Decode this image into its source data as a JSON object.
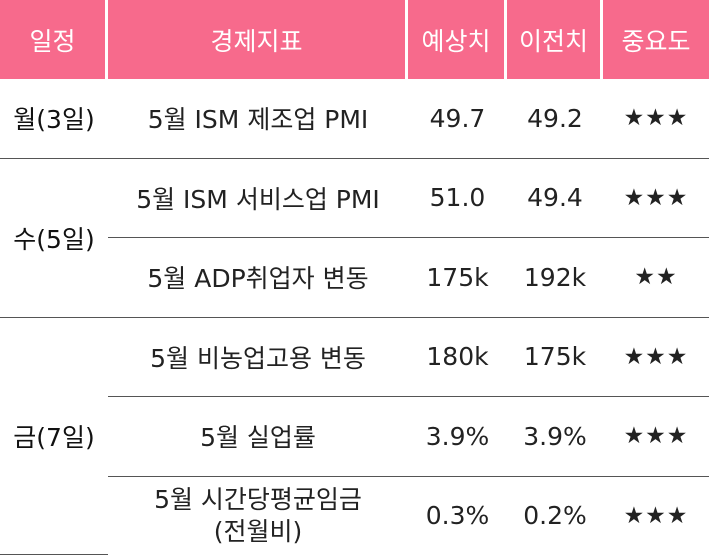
{
  "header": {
    "date": "일정",
    "indicator": "경제지표",
    "forecast": "예상치",
    "previous": "이전치",
    "importance": "중요도"
  },
  "groups": [
    {
      "day": "월(3일)",
      "rows": [
        {
          "indicator": "5월 ISM 제조업 PMI",
          "forecast": "49.7",
          "previous": "49.2",
          "importance": "★★★"
        }
      ]
    },
    {
      "day": "수(5일)",
      "rows": [
        {
          "indicator": "5월 ISM 서비스업 PMI",
          "forecast": "51.0",
          "previous": "49.4",
          "importance": "★★★"
        },
        {
          "indicator": "5월 ADP취업자 변동",
          "forecast": "175k",
          "previous": "192k",
          "importance": "★★"
        }
      ]
    },
    {
      "day": "금(7일)",
      "rows": [
        {
          "indicator": "5월 비농업고용 변동",
          "forecast": "180k",
          "previous": "175k",
          "importance": "★★★"
        },
        {
          "indicator": "5월 실업률",
          "forecast": "3.9%",
          "previous": "3.9%",
          "importance": "★★★"
        },
        {
          "indicator_line1": "5월 시간당평균임금",
          "indicator_line2": "(전월비)",
          "forecast": "0.3%",
          "previous": "0.2%",
          "importance": "★★★"
        }
      ]
    }
  ],
  "colors": {
    "header_bg": "#f76a8c",
    "header_text": "#ffffff",
    "rule": "#555555"
  }
}
